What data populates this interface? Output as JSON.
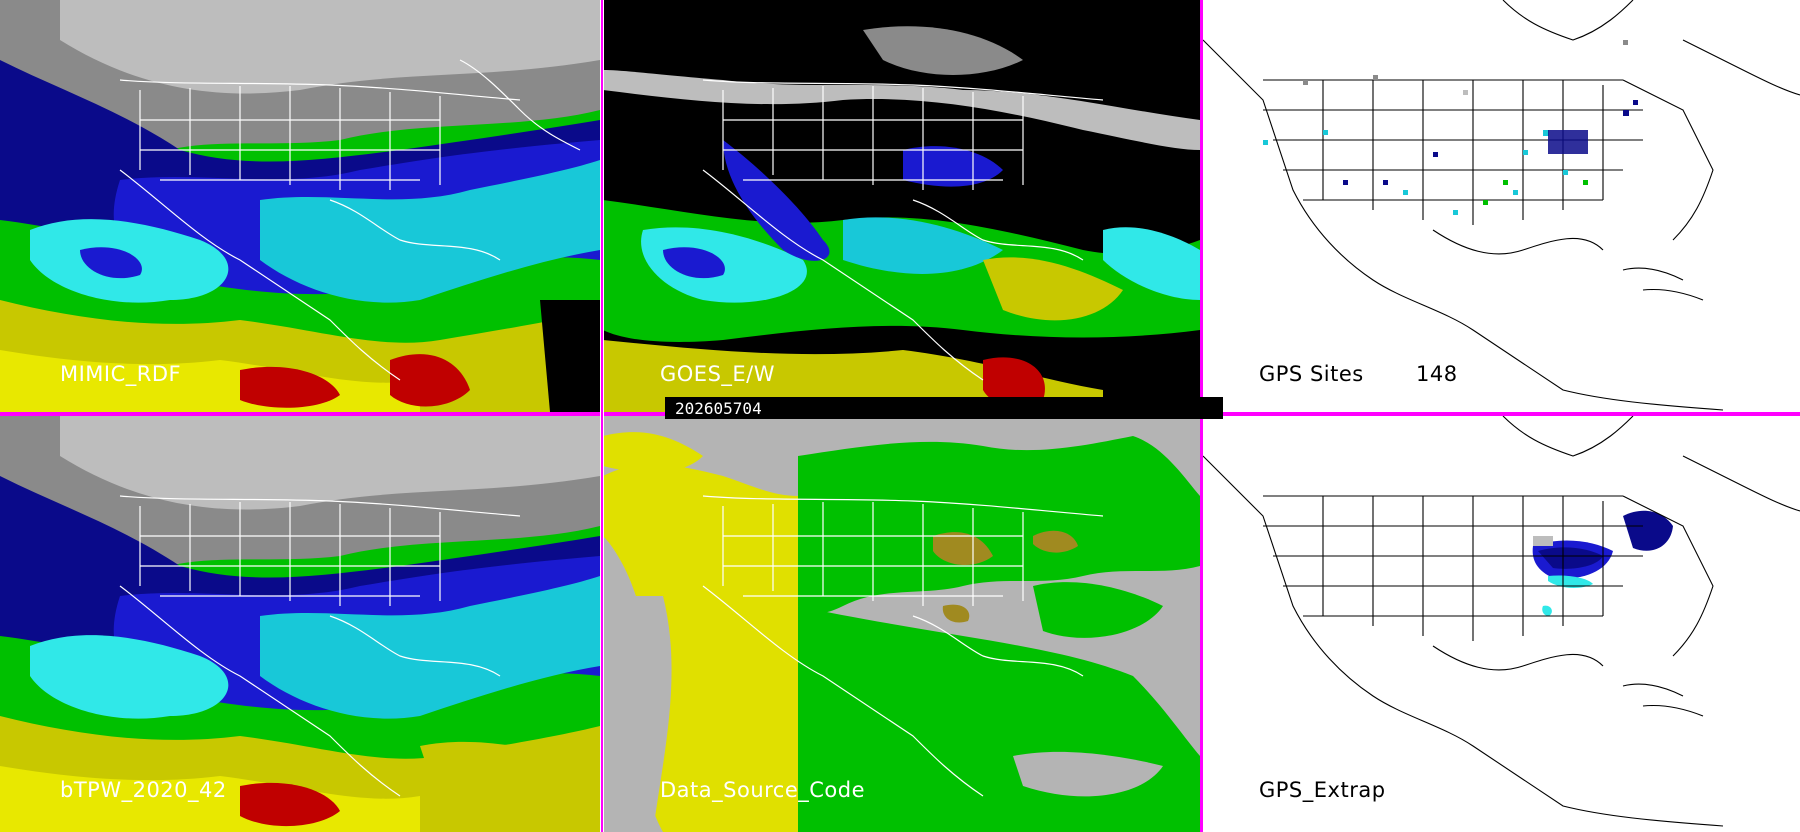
{
  "panels": [
    {
      "id": "p1",
      "title": "MIMIC_RDF",
      "theme": "tpw"
    },
    {
      "id": "p2",
      "title": "GOES_E/W",
      "theme": "goes"
    },
    {
      "id": "p3",
      "title": "GPS Sites",
      "count": "148",
      "theme": "gps"
    },
    {
      "id": "p4",
      "title": "bTPW_2020_42",
      "theme": "tpw"
    },
    {
      "id": "p5",
      "title": "Data_Source_Code",
      "theme": "dsc"
    },
    {
      "id": "p6",
      "title": "GPS_Extrap",
      "theme": "gpsx"
    }
  ],
  "timestamp": "202605704",
  "colors": {
    "divider": "#ff00ff",
    "tpw_scale": [
      "#bdbdbd",
      "#8a8a8a",
      "#0a0a8a",
      "#1a1ad0",
      "#18c8d8",
      "#30e8e8",
      "#00c000",
      "#40e000",
      "#c8c800",
      "#e8e800",
      "#c00000"
    ],
    "data_source_yellow": "#e0e000",
    "data_source_green": "#00c000",
    "data_source_gray": "#b4b4b4",
    "data_source_olive": "#a08a20"
  }
}
